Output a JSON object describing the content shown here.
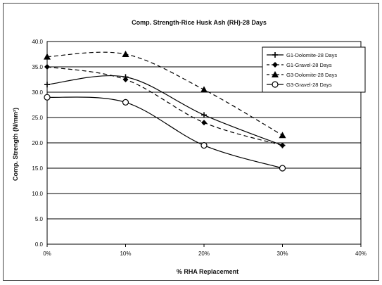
{
  "chart_data": {
    "type": "line",
    "title": "Comp. Strength-Rice Husk Ash (RH)-28 Days",
    "xlabel": "% RHA Replacement",
    "ylabel": "Comp. Strength (N/mm²)",
    "x": [
      0,
      10,
      20,
      30
    ],
    "x_ticks": [
      "0%",
      "10%",
      "20%",
      "30%",
      "40%"
    ],
    "x_range": [
      0,
      40
    ],
    "y_ticks": [
      "0.0",
      "5.0",
      "10.0",
      "15.0",
      "20.0",
      "25.0",
      "30.0",
      "35.0",
      "40.0"
    ],
    "y_range": [
      0,
      40
    ],
    "grid": "horizontal",
    "legend_position": "top-right",
    "series": [
      {
        "name": "G1-Dolomite-28 Days",
        "values": [
          31.5,
          33.0,
          25.5,
          19.5
        ],
        "marker": "plus",
        "dash": "solid",
        "color": "#000000"
      },
      {
        "name": "G1-Gravel-28 Days",
        "values": [
          35.0,
          32.5,
          24.0,
          19.5
        ],
        "marker": "diamond",
        "dash": "dashed",
        "color": "#000000"
      },
      {
        "name": "G3-Dolomite-28 Days",
        "values": [
          37.0,
          37.5,
          30.5,
          21.5
        ],
        "marker": "triangle",
        "dash": "dashed",
        "color": "#000000"
      },
      {
        "name": "G3-Gravel-28 Days",
        "values": [
          29.0,
          28.0,
          19.5,
          15.0
        ],
        "marker": "circle",
        "dash": "solid",
        "color": "#000000"
      }
    ]
  }
}
